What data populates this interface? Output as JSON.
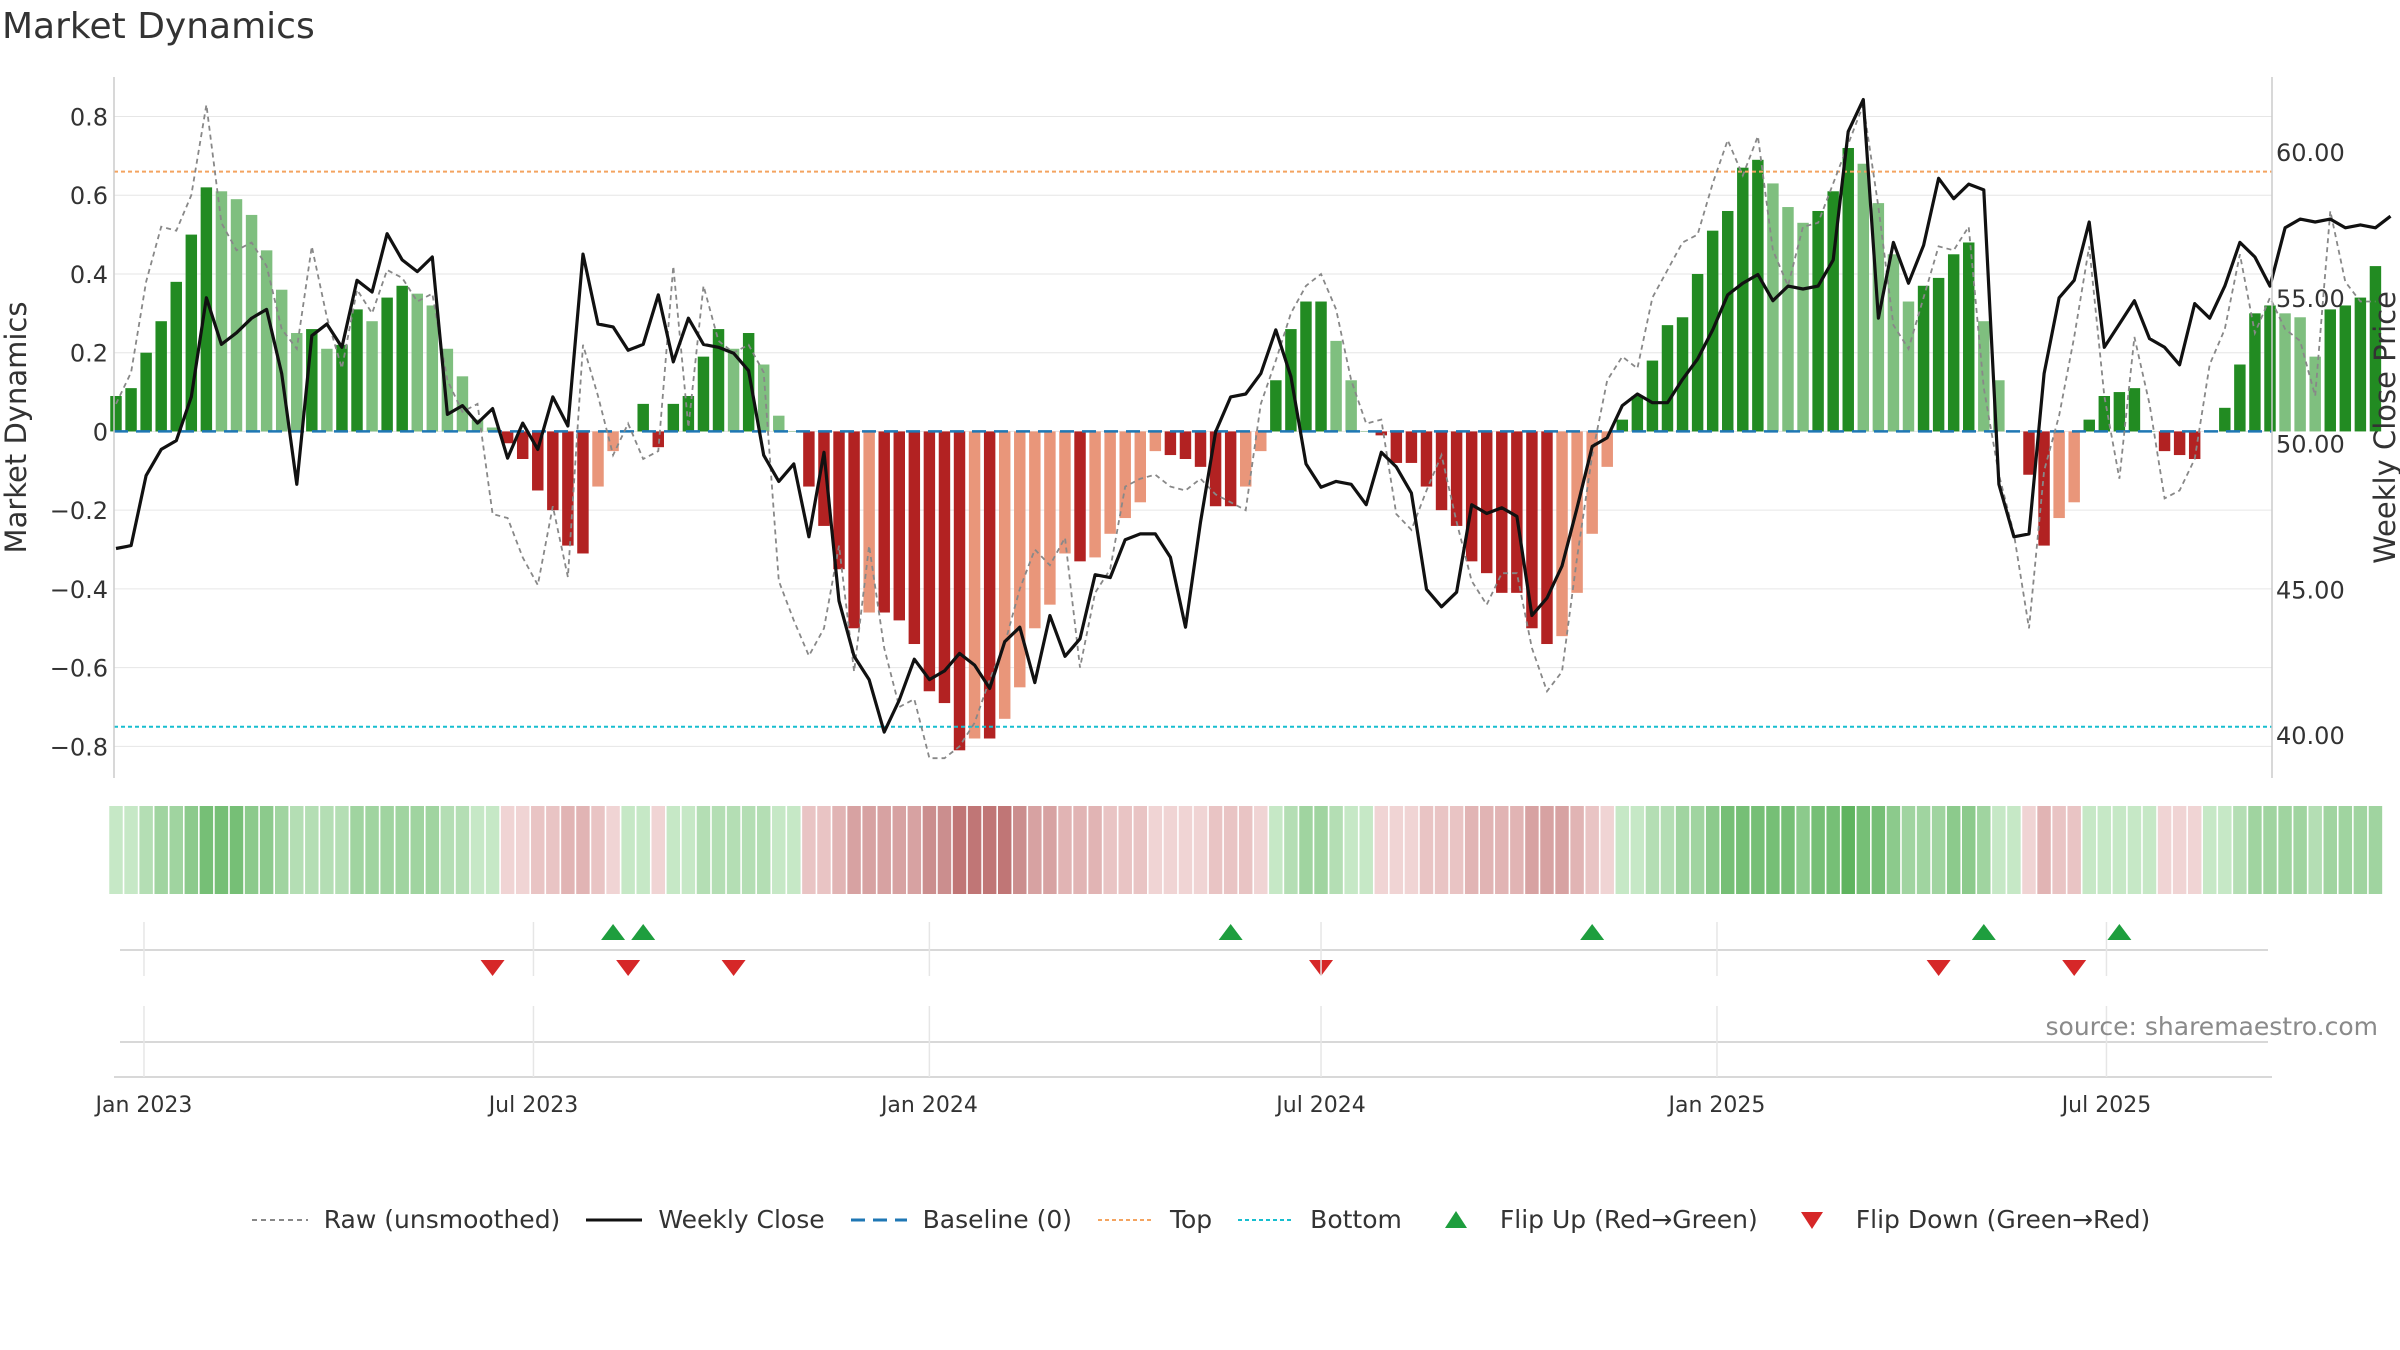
{
  "chart_data": {
    "type": "bar",
    "title": "Market Dynamics",
    "ylabel_left": "Market Dynamics",
    "ylabel_right": "Weekly Close Price",
    "ylim_left": [
      -0.86,
      0.88
    ],
    "ylim_right": [
      38.8,
      62.3
    ],
    "yticks_left": [
      "0.8",
      "0.6",
      "0.4",
      "0.2",
      "0",
      "−0.2",
      "−0.4",
      "−0.6",
      "−0.8"
    ],
    "yticks_left_values": [
      0.8,
      0.6,
      0.4,
      0.2,
      0,
      -0.2,
      -0.4,
      -0.6,
      -0.8
    ],
    "yticks_right": [
      "60.00",
      "55.00",
      "50.00",
      "45.00",
      "40.00"
    ],
    "yticks_right_values": [
      60,
      55,
      50,
      45,
      40
    ],
    "x_start": "2022-12-19",
    "week_step_days": 7,
    "x_end": "2025-09-15",
    "xticks": [
      "Jan 2023",
      "Jul 2023",
      "Jan 2024",
      "Jul 2024",
      "Jan 2025",
      "Jul 2025"
    ],
    "xticks_dates": [
      "2023-01-01",
      "2023-07-01",
      "2024-01-01",
      "2024-07-01",
      "2025-01-01",
      "2025-07-01"
    ],
    "top_threshold": 0.66,
    "bottom_threshold": -0.75,
    "baseline": 0,
    "grid": true,
    "legend_position": "bottom",
    "dynamics_weekly": [
      0.09,
      0.11,
      0.2,
      0.28,
      0.38,
      0.5,
      0.62,
      0.61,
      0.59,
      0.55,
      0.46,
      0.36,
      0.25,
      0.26,
      0.21,
      0.22,
      0.31,
      0.28,
      0.34,
      0.37,
      0.35,
      0.32,
      0.21,
      0.14,
      0.03,
      0.01,
      -0.03,
      -0.07,
      -0.15,
      -0.2,
      -0.29,
      -0.31,
      -0.14,
      -0.05,
      0,
      0.07,
      -0.04,
      0.07,
      0.09,
      0.19,
      0.26,
      0.21,
      0.25,
      0.17,
      0.04,
      0,
      -0.14,
      -0.24,
      -0.35,
      -0.5,
      -0.46,
      -0.46,
      -0.48,
      -0.54,
      -0.66,
      -0.69,
      -0.81,
      -0.78,
      -0.78,
      -0.73,
      -0.65,
      -0.5,
      -0.44,
      -0.31,
      -0.33,
      -0.32,
      -0.26,
      -0.22,
      -0.18,
      -0.05,
      -0.06,
      -0.07,
      -0.09,
      -0.19,
      -0.19,
      -0.14,
      -0.05,
      0.13,
      0.26,
      0.33,
      0.33,
      0.23,
      0.13,
      0,
      -0.01,
      -0.08,
      -0.08,
      -0.14,
      -0.2,
      -0.24,
      -0.33,
      -0.36,
      -0.41,
      -0.41,
      -0.5,
      -0.54,
      -0.52,
      -0.41,
      -0.26,
      -0.09,
      0.03,
      0.09,
      0.18,
      0.27,
      0.29,
      0.4,
      0.51,
      0.56,
      0.67,
      0.69,
      0.63,
      0.57,
      0.53,
      0.56,
      0.61,
      0.72,
      0.68,
      0.58,
      0.45,
      0.33,
      0.37,
      0.39,
      0.45,
      0.48,
      0.28,
      0.13,
      0,
      -0.11,
      -0.29,
      -0.22,
      -0.18,
      0.03,
      0.09,
      0.1,
      0.11,
      0,
      -0.05,
      -0.06,
      -0.07,
      0,
      0.06,
      0.17,
      0.3,
      0.32,
      0.3,
      0.29,
      0.19,
      0.31,
      0.32,
      0.34,
      0.42
    ],
    "raw_unsmoothed": [
      0.07,
      0.15,
      0.38,
      0.52,
      0.51,
      0.6,
      0.83,
      0.53,
      0.46,
      0.48,
      0.42,
      0.26,
      0.21,
      0.47,
      0.29,
      0.16,
      0.36,
      0.3,
      0.41,
      0.39,
      0.33,
      0.35,
      0.13,
      0.05,
      0.07,
      -0.21,
      -0.22,
      -0.32,
      -0.39,
      -0.19,
      -0.37,
      0.22,
      0.09,
      -0.06,
      0.02,
      -0.07,
      -0.05,
      0.42,
      0.01,
      0.37,
      0.23,
      0.2,
      0.22,
      0.15,
      -0.38,
      -0.48,
      -0.57,
      -0.5,
      -0.29,
      -0.61,
      -0.29,
      -0.55,
      -0.7,
      -0.68,
      -0.83,
      -0.83,
      -0.8,
      -0.74,
      -0.63,
      -0.54,
      -0.4,
      -0.3,
      -0.34,
      -0.27,
      -0.6,
      -0.41,
      -0.35,
      -0.14,
      -0.12,
      -0.11,
      -0.14,
      -0.15,
      -0.12,
      -0.16,
      -0.18,
      -0.2,
      0.07,
      0.18,
      0.3,
      0.37,
      0.4,
      0.31,
      0.13,
      0.02,
      0.03,
      -0.21,
      -0.25,
      -0.15,
      -0.06,
      -0.23,
      -0.38,
      -0.44,
      -0.36,
      -0.36,
      -0.55,
      -0.66,
      -0.61,
      -0.32,
      -0.06,
      0.13,
      0.19,
      0.16,
      0.34,
      0.41,
      0.48,
      0.5,
      0.63,
      0.74,
      0.65,
      0.75,
      0.46,
      0.37,
      0.52,
      0.53,
      0.63,
      0.73,
      0.83,
      0.57,
      0.27,
      0.21,
      0.34,
      0.47,
      0.46,
      0.52,
      0.11,
      -0.11,
      -0.26,
      -0.5,
      -0.1,
      0.04,
      0.24,
      0.47,
      0.09,
      -0.12,
      0.24,
      0.07,
      -0.17,
      -0.15,
      -0.07,
      0.17,
      0.26,
      0.45,
      0.25,
      0.34,
      0.26,
      0.23,
      0.09,
      0.56,
      0.38,
      0.33,
      0.33
    ],
    "weekly_close": [
      46.4,
      46.5,
      48.9,
      49.8,
      50.1,
      51.6,
      55,
      53.4,
      53.8,
      54.3,
      54.6,
      52.4,
      48.6,
      53.7,
      54.1,
      53.3,
      55.6,
      55.2,
      57.2,
      56.3,
      55.9,
      56.4,
      51,
      51.3,
      50.7,
      51.2,
      49.5,
      50.7,
      49.8,
      51.6,
      50.6,
      56.5,
      54.1,
      54,
      53.2,
      53.4,
      55.1,
      52.8,
      54.3,
      53.4,
      53.3,
      53.1,
      52.5,
      49.6,
      48.7,
      49.3,
      46.8,
      49.7,
      44.6,
      42.7,
      41.9,
      40.1,
      41.2,
      42.6,
      41.9,
      42.2,
      42.8,
      42.4,
      41.6,
      43.2,
      43.7,
      41.8,
      44.1,
      42.7,
      43.3,
      45.5,
      45.4,
      46.7,
      46.9,
      46.9,
      46.1,
      43.7,
      47.3,
      50.4,
      51.6,
      51.7,
      52.4,
      53.9,
      52.3,
      49.3,
      48.5,
      48.7,
      48.6,
      47.9,
      49.7,
      49.2,
      48.3,
      45,
      44.4,
      44.9,
      47.9,
      47.6,
      47.8,
      47.5,
      44.1,
      44.7,
      45.8,
      47.8,
      49.9,
      50.2,
      51.3,
      51.7,
      51.4,
      51.4,
      52.2,
      52.9,
      53.9,
      55.1,
      55.5,
      55.8,
      54.9,
      55.4,
      55.3,
      55.4,
      56.3,
      60.7,
      61.8,
      54.3,
      56.9,
      55.5,
      56.8,
      59.1,
      58.4,
      58.9,
      58.7,
      48.6,
      46.8,
      46.9,
      52.4,
      55,
      55.6,
      57.6,
      53.3,
      54.1,
      54.9,
      53.6,
      53.3,
      52.7,
      54.8,
      54.3,
      55.4,
      56.9,
      56.4,
      55.4,
      57.4,
      57.7,
      57.6,
      57.7,
      57.4,
      57.5,
      57.4,
      57.8
    ],
    "flip_up": [
      "2023-08-07",
      "2023-08-21",
      "2024-05-20",
      "2024-11-04",
      "2025-05-05",
      "2025-07-07"
    ],
    "flip_down": [
      "2023-06-12",
      "2023-08-14",
      "2023-10-02",
      "2024-07-01",
      "2025-04-14",
      "2025-06-16"
    ],
    "series": [
      {
        "name": "Raw (unsmoothed)",
        "color": "#888888",
        "style": "dashed"
      },
      {
        "name": "Weekly Close",
        "color": "#111111",
        "style": "solid"
      },
      {
        "name": "Baseline (0)",
        "color": "#1f77b4",
        "style": "dashed"
      },
      {
        "name": "Top",
        "color": "#f4a460",
        "style": "dotted"
      },
      {
        "name": "Bottom",
        "color": "#17becf",
        "style": "dotted"
      },
      {
        "name": "Flip Up (Red→Green)",
        "color": "#1e9e3e",
        "style": "marker-up"
      },
      {
        "name": "Flip Down (Green→Red)",
        "color": "#d62728",
        "style": "marker-down"
      }
    ],
    "colors": {
      "strong_up": "#228b22",
      "weak_up": "#7fbf7f",
      "strong_down": "#b22222",
      "weak_down": "#e9967a"
    }
  },
  "page": {
    "title": "Market Dynamics",
    "source": "source: sharemaestro.com"
  },
  "legend": {
    "raw": "Raw (unsmoothed)",
    "close": "Weekly Close",
    "baseline": "Baseline (0)",
    "top": "Top",
    "bottom": "Bottom",
    "flip_up": "Flip Up (Red→Green)",
    "flip_down": "Flip Down (Green→Red)"
  }
}
